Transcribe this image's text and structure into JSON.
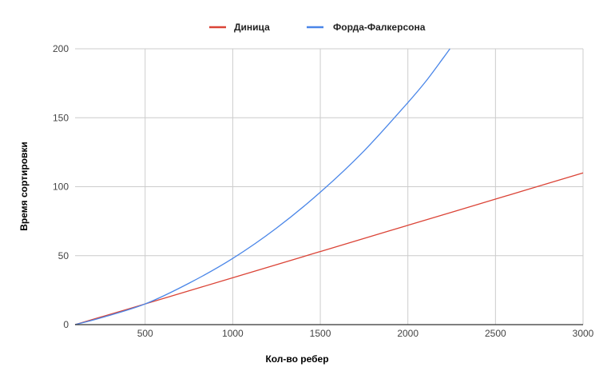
{
  "chart_data": {
    "type": "line",
    "xlabel": "Кол-во ребер",
    "ylabel": "Время сортировки",
    "xlim": [
      100,
      3000
    ],
    "ylim": [
      0,
      200
    ],
    "x_ticks": [
      500,
      1000,
      1500,
      2000,
      2500,
      3000
    ],
    "y_ticks": [
      0,
      50,
      100,
      150,
      200
    ],
    "grid": true,
    "legend_position": "top-center",
    "series": [
      {
        "name": "Диница",
        "color": "#db4437",
        "x": [
          100,
          500,
          1000,
          1500,
          2000,
          2500,
          3000
        ],
        "y": [
          0,
          15,
          34,
          53,
          72,
          91,
          110
        ]
      },
      {
        "name": "Форда-Фалкерсона",
        "color": "#4a86e8",
        "x": [
          100,
          250,
          500,
          750,
          1000,
          1250,
          1500,
          1750,
          2000,
          2100,
          2200,
          2240
        ],
        "y": [
          0,
          5,
          15,
          30,
          48,
          70,
          96,
          126,
          161,
          176,
          193,
          200
        ]
      }
    ]
  }
}
